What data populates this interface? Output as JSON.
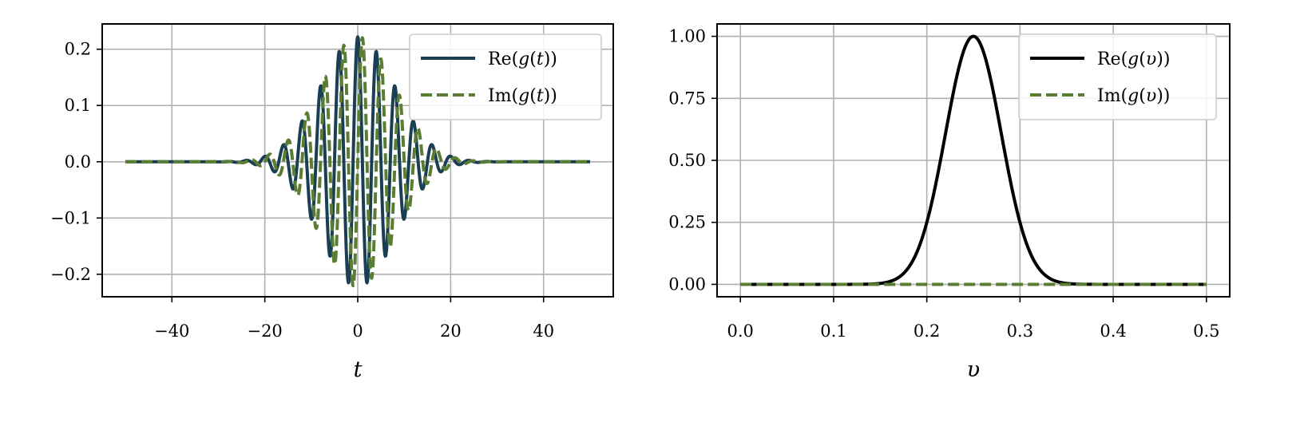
{
  "colors": {
    "re_t": "#1b3f52",
    "im": "#5a7d34",
    "re_v": "#000000",
    "grid": "#b0b0b0"
  },
  "chart_data": [
    {
      "type": "line",
      "xlabel": "t",
      "ylabel": "",
      "xlim": [
        -55,
        55
      ],
      "ylim": [
        -0.24,
        0.245
      ],
      "xticks": [
        -40,
        -20,
        0,
        20,
        40
      ],
      "xtick_labels": [
        "−40",
        "−20",
        "0",
        "20",
        "40"
      ],
      "yticks": [
        -0.2,
        -0.1,
        0.0,
        0.1,
        0.2
      ],
      "ytick_labels": [
        "−0.2",
        "−0.1",
        "0.0",
        "0.1",
        "0.2"
      ],
      "grid": true,
      "legend_position": "top-right",
      "x_range": [
        -50,
        50
      ],
      "series": [
        {
          "name": "Re(g(t))",
          "legend_func": "Re(",
          "legend_var": "g",
          "legend_arg": "t",
          "legend_close": "))",
          "style": "solid",
          "color": "#1b3f52",
          "function": "0.222*exp(-t^2/(2*64))*cos(2*pi*0.25*t)"
        },
        {
          "name": "Im(g(t))",
          "legend_func": "Im(",
          "legend_var": "g",
          "legend_arg": "t",
          "legend_close": "))",
          "style": "dashed",
          "color": "#5a7d34",
          "function": "0.222*exp(-t^2/(2*64))*sin(2*pi*0.25*t)"
        }
      ]
    },
    {
      "type": "line",
      "xlabel": "υ",
      "ylabel": "",
      "xlim": [
        -0.025,
        0.525
      ],
      "ylim": [
        -0.05,
        1.05
      ],
      "xticks": [
        0.0,
        0.1,
        0.2,
        0.3,
        0.4,
        0.5
      ],
      "xtick_labels": [
        "0.0",
        "0.1",
        "0.2",
        "0.3",
        "0.4",
        "0.5"
      ],
      "yticks": [
        0.0,
        0.25,
        0.5,
        0.75,
        1.0
      ],
      "ytick_labels": [
        "0.00",
        "0.25",
        "0.50",
        "0.75",
        "1.00"
      ],
      "grid": true,
      "legend_position": "top-right",
      "x_range": [
        0,
        0.5
      ],
      "series": [
        {
          "name": "Re(g(υ))",
          "legend_func": "Re(",
          "legend_var": "g",
          "legend_arg": "υ",
          "legend_close": "))",
          "style": "solid",
          "color": "#000000",
          "function": "exp(-(v-0.25)^2/(2*0.03^2))"
        },
        {
          "name": "Im(g(υ))",
          "legend_func": "Im(",
          "legend_var": "g",
          "legend_arg": "υ",
          "legend_close": "))",
          "style": "dashed",
          "color": "#5a7d34",
          "function": "0"
        }
      ]
    }
  ]
}
